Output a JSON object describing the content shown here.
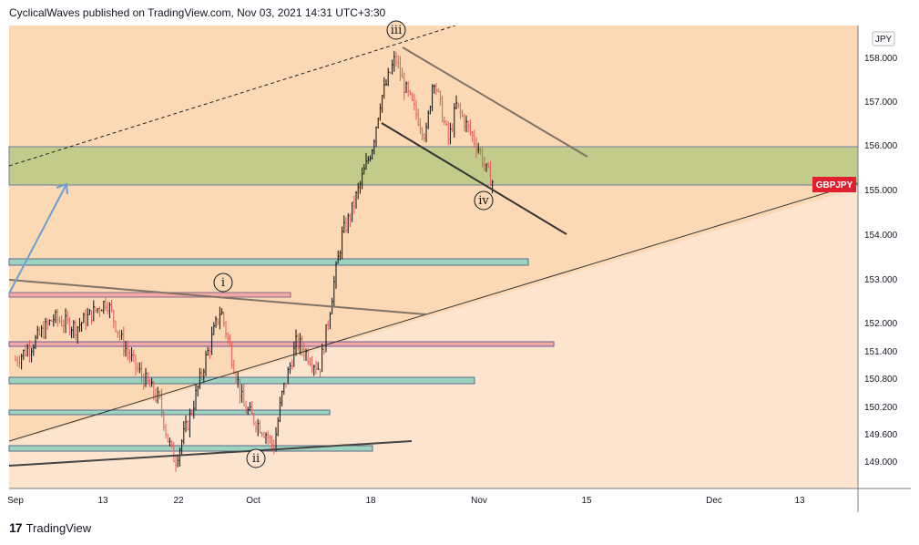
{
  "header": {
    "text": "CyclicalWaves published on TradingView.com, Nov 03, 2021 14:31 UTC+3:30"
  },
  "footer": {
    "logo": "17",
    "brand": "TradingView"
  },
  "colors": {
    "bg_upper": "#fbd9b4",
    "bg_lower": "#fce4cf",
    "zone_green": "#c2cb8a",
    "box_teal": "#9ed3c0",
    "box_pink": "#f2aaa6",
    "candle_up": "#0b0b0b",
    "candle_down": "#e35a55",
    "price_label": "#e0202e"
  },
  "chart_data": {
    "type": "candlestick",
    "symbol": "GBPJPY",
    "currency": "JPY",
    "y_ticks": [
      "158.000",
      "157.000",
      "156.000",
      "155.000",
      "154.000",
      "153.000",
      "152.000",
      "151.400",
      "150.800",
      "150.200",
      "149.600",
      "149.000"
    ],
    "x_ticks": [
      "Sep",
      "13",
      "22",
      "Oct",
      "18",
      "Nov",
      "15",
      "Dec",
      "13"
    ],
    "last_price_label": "GBPJPY",
    "last_price": 155.0,
    "wave_labels": [
      "i",
      "ii",
      "iii",
      "iv"
    ],
    "supply_demand_zone": [
      155.1,
      156.0
    ],
    "price_path": [
      [
        "Sep 1",
        151.2
      ],
      [
        "Sep 3",
        151.5
      ],
      [
        "Sep 6",
        152.1
      ],
      [
        "Sep 9",
        151.9
      ],
      [
        "Sep 13",
        152.5
      ],
      [
        "Sep 15",
        151.6
      ],
      [
        "Sep 17",
        151.0
      ],
      [
        "Sep 20",
        150.3
      ],
      [
        "Sep 21",
        149.5
      ],
      [
        "Sep 22",
        149.0
      ],
      [
        "Sep 24",
        150.0
      ],
      [
        "Sep 26",
        151.2
      ],
      [
        "Sep 28",
        152.3
      ],
      [
        "Sep 30",
        150.9
      ],
      [
        "Oct 1",
        150.2
      ],
      [
        "Oct 4",
        149.6
      ],
      [
        "Oct 5",
        149.3
      ],
      [
        "Oct 6",
        150.4
      ],
      [
        "Oct 8",
        151.6
      ],
      [
        "Oct 11",
        151.0
      ],
      [
        "Oct 12",
        151.9
      ],
      [
        "Oct 13",
        153.0
      ],
      [
        "Oct 14",
        154.0
      ],
      [
        "Oct 15",
        154.4
      ],
      [
        "Oct 18",
        156.0
      ],
      [
        "Oct 19",
        157.0
      ],
      [
        "Oct 21",
        158.0
      ],
      [
        "Oct 22",
        157.4
      ],
      [
        "Oct 25",
        156.2
      ],
      [
        "Oct 26",
        157.6
      ],
      [
        "Oct 27",
        156.8
      ],
      [
        "Oct 28",
        156.1
      ],
      [
        "Oct 29",
        156.9
      ],
      [
        "Nov 1",
        155.9
      ],
      [
        "Nov 2",
        155.4
      ],
      [
        "Nov 3",
        155.1
      ]
    ]
  }
}
